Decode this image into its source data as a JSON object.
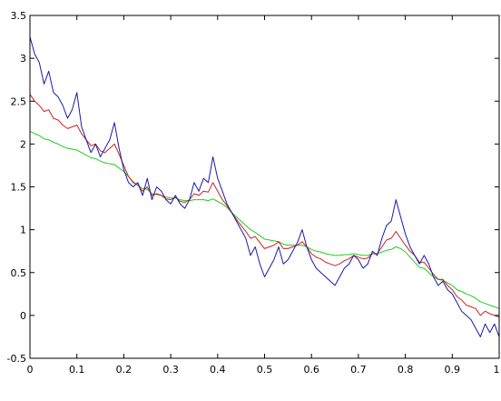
{
  "chart_data": {
    "type": "line",
    "title": "",
    "xlabel": "",
    "ylabel": "",
    "xlim": [
      0,
      1
    ],
    "ylim": [
      -0.5,
      3.5
    ],
    "xticks": [
      "0",
      "0.1",
      "0.2",
      "0.3",
      "0.4",
      "0.5",
      "0.6",
      "0.7",
      "0.8",
      "0.9",
      "1"
    ],
    "yticks": [
      "-0.5",
      "0",
      "0.5",
      "1",
      "1.5",
      "2",
      "2.5",
      "3",
      "3.5"
    ],
    "grid": false,
    "legend": "none",
    "series": [
      {
        "color": "#1a1aa6",
        "x": [
          0,
          0.01,
          0.02,
          0.03,
          0.04,
          0.05,
          0.06,
          0.07,
          0.08,
          0.09,
          0.1,
          0.11,
          0.12,
          0.13,
          0.14,
          0.15,
          0.16,
          0.17,
          0.18,
          0.19,
          0.2,
          0.21,
          0.22,
          0.23,
          0.24,
          0.25,
          0.26,
          0.27,
          0.28,
          0.29,
          0.3,
          0.31,
          0.32,
          0.33,
          0.34,
          0.35,
          0.36,
          0.37,
          0.38,
          0.39,
          0.4,
          0.41,
          0.42,
          0.43,
          0.44,
          0.45,
          0.46,
          0.47,
          0.48,
          0.49,
          0.5,
          0.51,
          0.52,
          0.53,
          0.54,
          0.55,
          0.56,
          0.57,
          0.58,
          0.59,
          0.6,
          0.61,
          0.62,
          0.63,
          0.64,
          0.65,
          0.66,
          0.67,
          0.68,
          0.69,
          0.7,
          0.71,
          0.72,
          0.73,
          0.74,
          0.75,
          0.76,
          0.77,
          0.78,
          0.79,
          0.8,
          0.81,
          0.82,
          0.83,
          0.84,
          0.85,
          0.86,
          0.87,
          0.88,
          0.89,
          0.9,
          0.91,
          0.92,
          0.93,
          0.94,
          0.95,
          0.96,
          0.97,
          0.98,
          0.99,
          1.0
        ],
        "y": [
          3.25,
          3.05,
          2.95,
          2.7,
          2.85,
          2.6,
          2.55,
          2.45,
          2.3,
          2.4,
          2.6,
          2.2,
          2.05,
          1.9,
          2.0,
          1.85,
          1.95,
          2.05,
          2.25,
          1.95,
          1.7,
          1.55,
          1.5,
          1.55,
          1.4,
          1.6,
          1.35,
          1.5,
          1.45,
          1.35,
          1.3,
          1.4,
          1.3,
          1.25,
          1.35,
          1.55,
          1.45,
          1.6,
          1.55,
          1.85,
          1.6,
          1.45,
          1.3,
          1.2,
          1.1,
          1.0,
          0.9,
          0.7,
          0.8,
          0.6,
          0.45,
          0.55,
          0.65,
          0.8,
          0.6,
          0.65,
          0.75,
          0.85,
          1.0,
          0.8,
          0.65,
          0.55,
          0.5,
          0.45,
          0.4,
          0.35,
          0.45,
          0.55,
          0.6,
          0.7,
          0.65,
          0.55,
          0.6,
          0.75,
          0.7,
          0.9,
          1.05,
          1.1,
          1.35,
          1.15,
          0.95,
          0.8,
          0.7,
          0.6,
          0.7,
          0.6,
          0.45,
          0.35,
          0.4,
          0.3,
          0.25,
          0.15,
          0.05,
          0.0,
          -0.05,
          -0.15,
          -0.25,
          -0.1,
          -0.2,
          -0.1,
          -0.25
        ]
      },
      {
        "color": "#cc2222",
        "x": [
          0,
          0.01,
          0.02,
          0.03,
          0.04,
          0.05,
          0.06,
          0.07,
          0.08,
          0.09,
          0.1,
          0.11,
          0.12,
          0.13,
          0.14,
          0.15,
          0.16,
          0.17,
          0.18,
          0.19,
          0.2,
          0.21,
          0.22,
          0.23,
          0.24,
          0.25,
          0.26,
          0.27,
          0.28,
          0.29,
          0.3,
          0.31,
          0.32,
          0.33,
          0.34,
          0.35,
          0.36,
          0.37,
          0.38,
          0.39,
          0.4,
          0.41,
          0.42,
          0.43,
          0.44,
          0.45,
          0.46,
          0.47,
          0.48,
          0.49,
          0.5,
          0.51,
          0.52,
          0.53,
          0.54,
          0.55,
          0.56,
          0.57,
          0.58,
          0.59,
          0.6,
          0.61,
          0.62,
          0.63,
          0.64,
          0.65,
          0.66,
          0.67,
          0.68,
          0.69,
          0.7,
          0.71,
          0.72,
          0.73,
          0.74,
          0.75,
          0.76,
          0.77,
          0.78,
          0.79,
          0.8,
          0.81,
          0.82,
          0.83,
          0.84,
          0.85,
          0.86,
          0.87,
          0.88,
          0.89,
          0.9,
          0.91,
          0.92,
          0.93,
          0.94,
          0.95,
          0.96,
          0.97,
          0.98,
          0.99,
          1.0
        ],
        "y": [
          2.58,
          2.5,
          2.45,
          2.38,
          2.4,
          2.3,
          2.28,
          2.22,
          2.18,
          2.2,
          2.22,
          2.12,
          2.05,
          1.98,
          2.0,
          1.92,
          1.9,
          1.95,
          2.0,
          1.88,
          1.75,
          1.62,
          1.55,
          1.52,
          1.45,
          1.5,
          1.4,
          1.42,
          1.4,
          1.36,
          1.35,
          1.38,
          1.33,
          1.32,
          1.35,
          1.42,
          1.4,
          1.45,
          1.44,
          1.55,
          1.45,
          1.35,
          1.28,
          1.2,
          1.12,
          1.05,
          0.98,
          0.9,
          0.92,
          0.85,
          0.78,
          0.8,
          0.82,
          0.86,
          0.78,
          0.78,
          0.8,
          0.82,
          0.86,
          0.8,
          0.72,
          0.68,
          0.66,
          0.62,
          0.6,
          0.58,
          0.6,
          0.64,
          0.66,
          0.7,
          0.68,
          0.66,
          0.67,
          0.72,
          0.72,
          0.8,
          0.88,
          0.9,
          0.98,
          0.9,
          0.82,
          0.75,
          0.7,
          0.62,
          0.62,
          0.55,
          0.48,
          0.42,
          0.42,
          0.35,
          0.3,
          0.22,
          0.18,
          0.12,
          0.1,
          0.08,
          0.0,
          0.05,
          0.02,
          0.0,
          -0.02
        ]
      },
      {
        "color": "#22cc22",
        "x": [
          0,
          0.01,
          0.02,
          0.03,
          0.04,
          0.05,
          0.06,
          0.07,
          0.08,
          0.09,
          0.1,
          0.11,
          0.12,
          0.13,
          0.14,
          0.15,
          0.16,
          0.17,
          0.18,
          0.19,
          0.2,
          0.21,
          0.22,
          0.23,
          0.24,
          0.25,
          0.26,
          0.27,
          0.28,
          0.29,
          0.3,
          0.31,
          0.32,
          0.33,
          0.34,
          0.35,
          0.36,
          0.37,
          0.38,
          0.39,
          0.4,
          0.41,
          0.42,
          0.43,
          0.44,
          0.45,
          0.46,
          0.47,
          0.48,
          0.49,
          0.5,
          0.51,
          0.52,
          0.53,
          0.54,
          0.55,
          0.56,
          0.57,
          0.58,
          0.59,
          0.6,
          0.61,
          0.62,
          0.63,
          0.64,
          0.65,
          0.66,
          0.67,
          0.68,
          0.69,
          0.7,
          0.71,
          0.72,
          0.73,
          0.74,
          0.75,
          0.76,
          0.77,
          0.78,
          0.79,
          0.8,
          0.81,
          0.82,
          0.83,
          0.84,
          0.85,
          0.86,
          0.87,
          0.88,
          0.89,
          0.9,
          0.91,
          0.92,
          0.93,
          0.94,
          0.95,
          0.96,
          0.97,
          0.98,
          0.99,
          1.0
        ],
        "y": [
          2.15,
          2.12,
          2.1,
          2.06,
          2.05,
          2.02,
          2.0,
          1.97,
          1.95,
          1.94,
          1.93,
          1.9,
          1.87,
          1.84,
          1.83,
          1.8,
          1.78,
          1.77,
          1.76,
          1.72,
          1.68,
          1.62,
          1.56,
          1.52,
          1.48,
          1.47,
          1.42,
          1.41,
          1.4,
          1.38,
          1.37,
          1.37,
          1.35,
          1.34,
          1.34,
          1.35,
          1.35,
          1.35,
          1.34,
          1.36,
          1.33,
          1.3,
          1.26,
          1.2,
          1.15,
          1.1,
          1.05,
          1.0,
          0.97,
          0.93,
          0.89,
          0.88,
          0.87,
          0.86,
          0.83,
          0.82,
          0.82,
          0.82,
          0.82,
          0.8,
          0.77,
          0.75,
          0.74,
          0.72,
          0.71,
          0.7,
          0.7,
          0.71,
          0.71,
          0.72,
          0.71,
          0.7,
          0.7,
          0.72,
          0.72,
          0.74,
          0.76,
          0.77,
          0.8,
          0.78,
          0.74,
          0.68,
          0.62,
          0.56,
          0.55,
          0.5,
          0.45,
          0.42,
          0.41,
          0.38,
          0.35,
          0.3,
          0.28,
          0.25,
          0.23,
          0.2,
          0.16,
          0.14,
          0.12,
          0.1,
          0.08
        ]
      }
    ]
  }
}
